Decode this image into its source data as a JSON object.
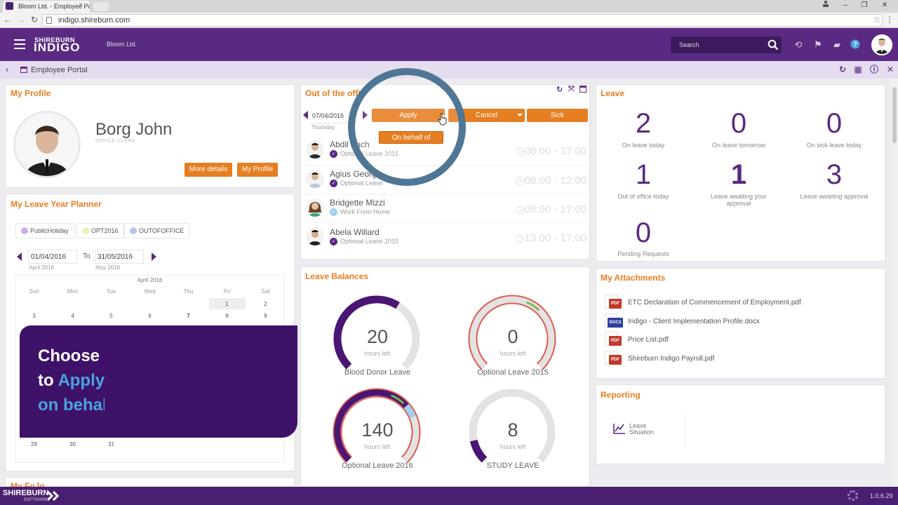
{
  "browser": {
    "tab_title": "Bloom Ltd. - Employee Po",
    "tab_close": "×",
    "url": "indigo.shireburn.com",
    "controls": {
      "minimize": "‒",
      "restore": "❐",
      "close": "✕"
    }
  },
  "header": {
    "brand_top": "SHIREBURN",
    "brand_main": "INDIGO",
    "company": "Bloom Ltd.",
    "search_placeholder": "Search"
  },
  "subbar": {
    "back": "‹",
    "title": "Employee Portal"
  },
  "profile": {
    "title": "My Profile",
    "name": "Borg John",
    "role": "OFFICE CLERK",
    "more_details": "More details",
    "my_profile": "My Profile"
  },
  "planner": {
    "title": "My Leave Year Planner",
    "legend": [
      {
        "label": "PublicHoliday",
        "color": "#c9b3e6"
      },
      {
        "label": "OPT2016",
        "color": "#eef0b8"
      },
      {
        "label": "OUTOFOFFICE",
        "color": "#b9c4ee"
      }
    ],
    "from_date": "01/04/2016",
    "from_month": "April 2016",
    "to_label": "To",
    "to_date": "31/05/2016",
    "to_month": "May 2016",
    "calendar_month": "April 2016",
    "weekdays": [
      "Sun",
      "Mon",
      "Tue",
      "Wed",
      "Thu",
      "Fri",
      "Sat"
    ],
    "week1": [
      "1",
      "2"
    ],
    "week2": [
      "3",
      "4",
      "5",
      "6",
      "7",
      "8",
      "9"
    ],
    "last_week": [
      "29",
      "30",
      "31"
    ]
  },
  "more_panel_title": "My FoJo",
  "ooo": {
    "title": "Out of the offi",
    "date": "07/04/2016",
    "day": "Thursday",
    "apply": "Apply",
    "cancel": "Cancel",
    "sick": "Sick",
    "on_behalf": "On behalf of",
    "rows": [
      {
        "name": "Abdil Zach",
        "type": "Optional Leave 2015",
        "time": "08:00 - 17:00"
      },
      {
        "name": "Agius Georg",
        "type": "Optional Leave",
        "time": "08:00 - 12:00"
      },
      {
        "name": "Bridgette Mizzi",
        "type": "Work From Home",
        "time": "08:00 - 17:00"
      },
      {
        "name": "Abela Willard",
        "type": "Optional Leave 2015",
        "time": "13:00 - 17:00"
      }
    ]
  },
  "balances": {
    "title": "Leave Balances",
    "hours_left": "hours left",
    "gauges": [
      {
        "value": "20",
        "label": "Blood Donor Leave",
        "fraction": 0.62,
        "color": "#4a1673"
      },
      {
        "value": "0",
        "label": "Optional Leave 2015",
        "fraction": 0.0,
        "color": "#4a1673"
      },
      {
        "value": "140",
        "label": "Optional Leave 2016",
        "fraction": 0.68,
        "color": "#4a1673"
      },
      {
        "value": "8",
        "label": "STUDY LEAVE",
        "fraction": 0.12,
        "color": "#4a1673"
      }
    ]
  },
  "leave": {
    "title": "Leave",
    "stats": [
      {
        "num": "2",
        "label": "On leave today"
      },
      {
        "num": "0",
        "label": "On leave tomorrow"
      },
      {
        "num": "0",
        "label": "On sick leave today"
      },
      {
        "num": "1",
        "label": "Out of office today"
      },
      {
        "num": "1",
        "label": "Leave awaiting your approval"
      },
      {
        "num": "3",
        "label": "Leave awaiting approval"
      },
      {
        "num": "0",
        "label": "Pending Requests"
      }
    ]
  },
  "attachments": {
    "title": "My Attachments",
    "files": [
      {
        "type": "PDF",
        "name": "ETC Declaration of Commencement of Employment.pdf",
        "color": "#c0392b"
      },
      {
        "type": "DOCX",
        "name": "Indigo - Client Implementation Profile.docx",
        "color": "#2c3e9e"
      },
      {
        "type": "PDF",
        "name": "Price List.pdf",
        "color": "#c0392b"
      },
      {
        "type": "PDF",
        "name": "Shireburn Indigo Payroll.pdf",
        "color": "#c0392b"
      }
    ]
  },
  "reporting": {
    "title": "Reporting",
    "item": "Leave Situation"
  },
  "overlay": {
    "line1": "Choose",
    "line2a": "to ",
    "line2b": "Apply",
    "line3": "on behalf of"
  },
  "footer": {
    "brand": "SHIREBURN",
    "sub": "SOFTWARE",
    "version": "1.0.6.29"
  },
  "colors": {
    "purple": "#5a2a82",
    "orange": "#e67e22",
    "highlight_ring": "#4f7694",
    "accent_blue": "#4aa3df"
  }
}
